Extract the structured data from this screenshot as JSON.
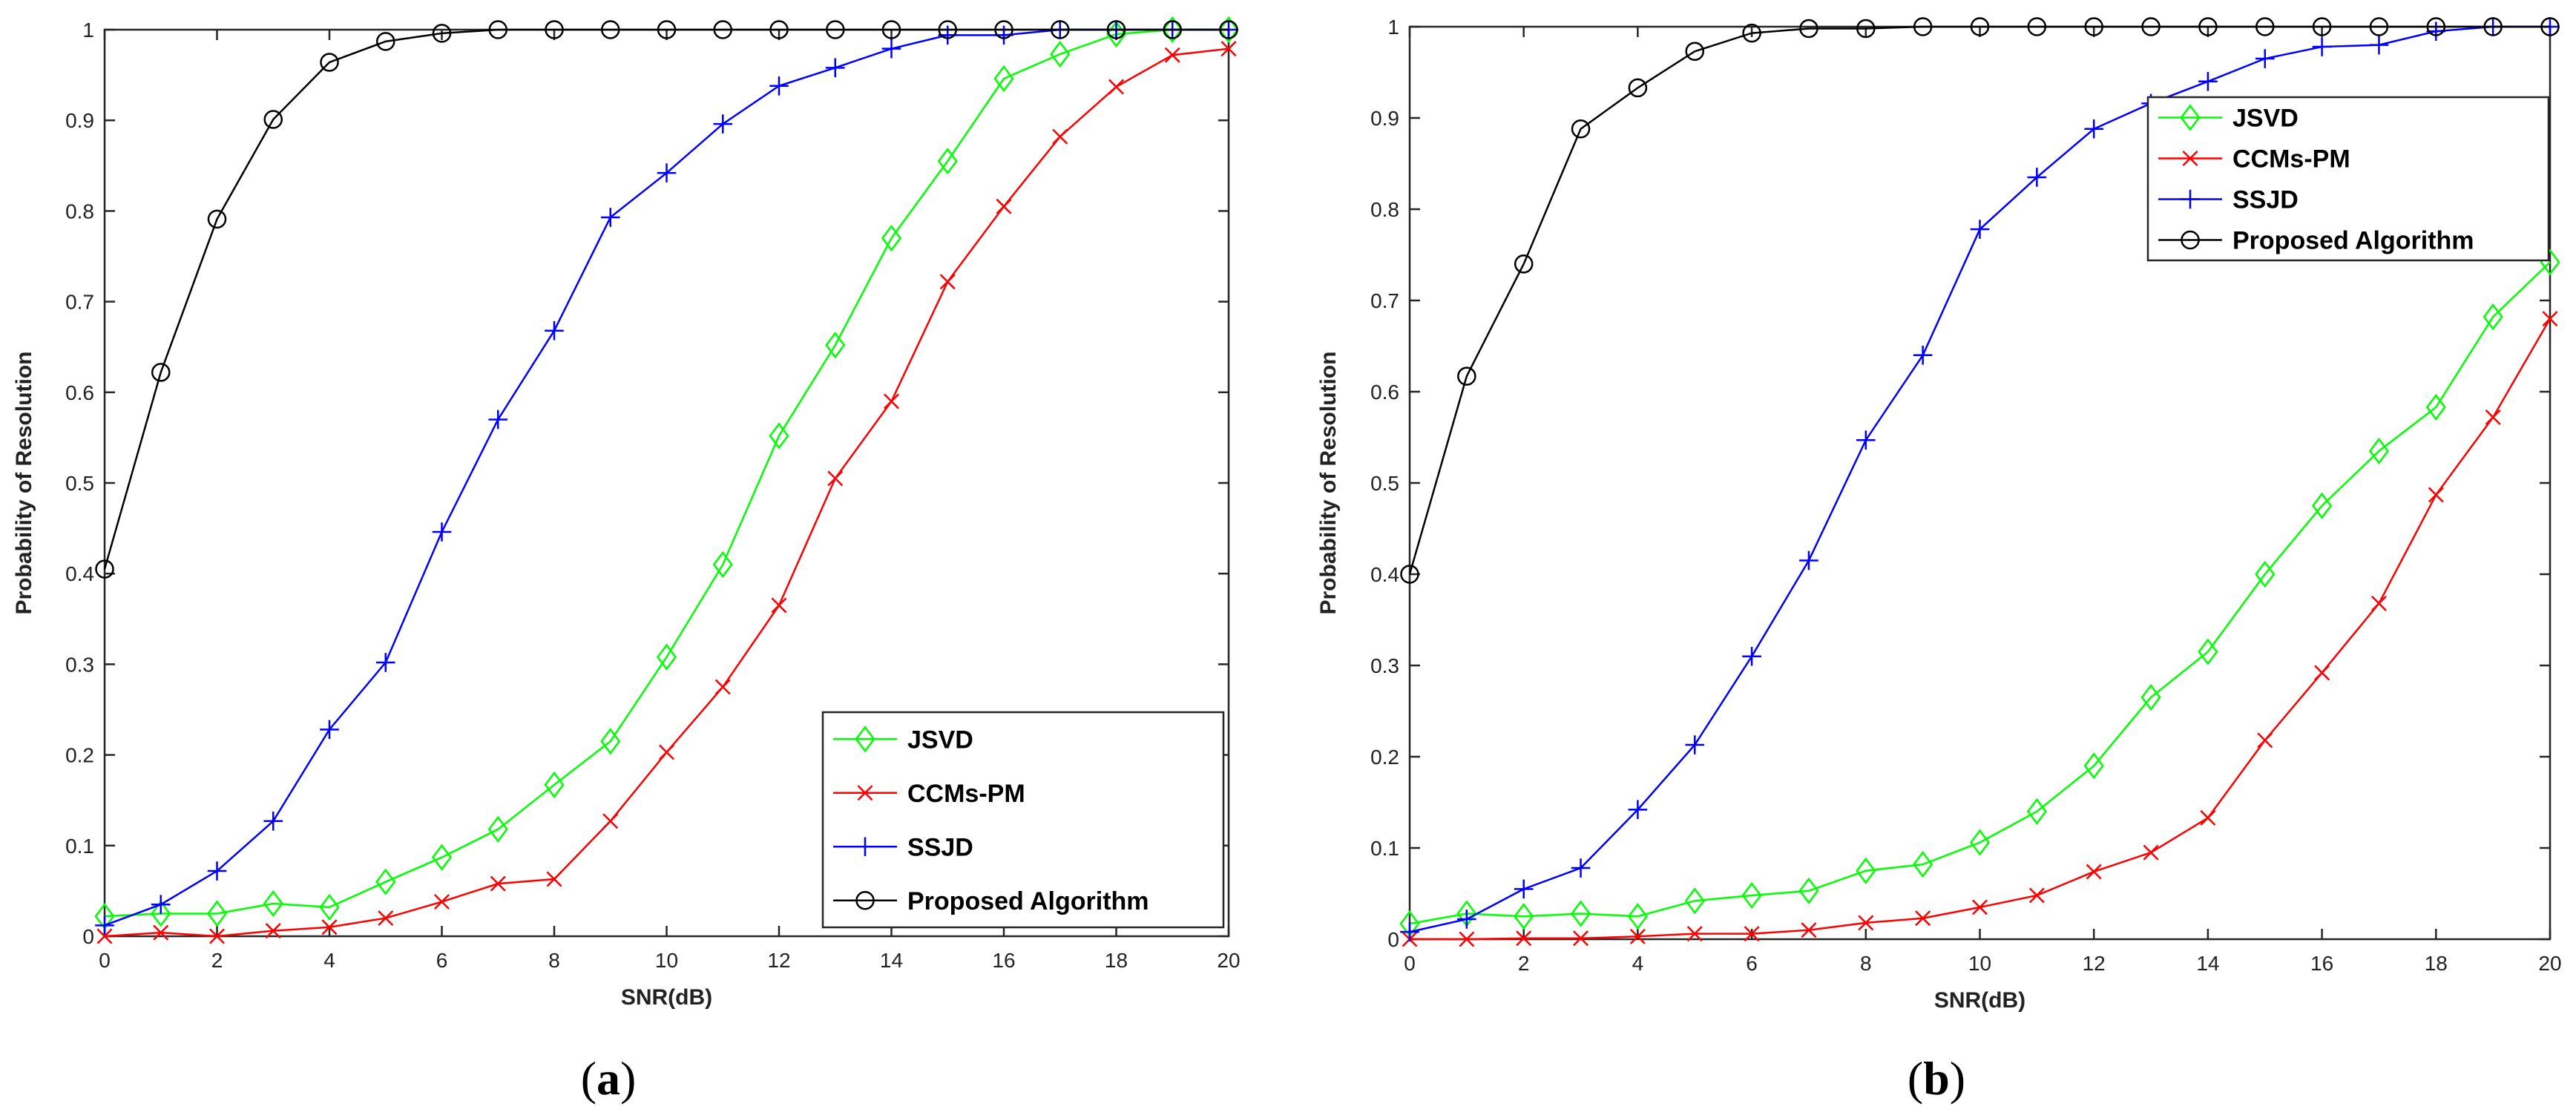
{
  "chart_data": [
    {
      "type": "line",
      "label_letter": "a",
      "xlabel": "SNR(dB)",
      "ylabel": "Probability of Resolution",
      "xlim": [
        0,
        20
      ],
      "ylim": [
        0,
        1
      ],
      "xticks": [
        0,
        2,
        4,
        6,
        8,
        10,
        12,
        14,
        16,
        18,
        20
      ],
      "yticks": [
        0,
        0.1,
        0.2,
        0.3,
        0.4,
        0.5,
        0.6,
        0.7,
        0.8,
        0.9,
        1
      ],
      "ytick_labels": [
        "0",
        "0.1",
        "0.2",
        "0.3",
        "0.4",
        "0.5",
        "0.6",
        "0.7",
        "0.8",
        "0.9",
        "1"
      ],
      "legend_position": "bottom-right",
      "x": [
        0,
        1,
        2,
        3,
        4,
        5,
        6,
        7,
        8,
        9,
        10,
        11,
        12,
        13,
        14,
        15,
        16,
        17,
        18,
        19,
        20
      ],
      "series": [
        {
          "name": "JSVD",
          "color": "#00ff00",
          "marker": "diamond",
          "values": [
            0.022,
            0.025,
            0.025,
            0.036,
            0.032,
            0.06,
            0.087,
            0.118,
            0.167,
            0.215,
            0.308,
            0.41,
            0.552,
            0.652,
            0.77,
            0.855,
            0.946,
            0.973,
            0.995,
            1.0,
            1.0
          ]
        },
        {
          "name": "CCMs-PM",
          "color": "#ff0000",
          "marker": "x",
          "values": [
            0.0,
            0.004,
            0.0,
            0.006,
            0.01,
            0.02,
            0.038,
            0.058,
            0.063,
            0.127,
            0.203,
            0.275,
            0.365,
            0.505,
            0.59,
            0.722,
            0.805,
            0.882,
            0.937,
            0.972,
            0.979
          ]
        },
        {
          "name": "SSJD",
          "color": "#0000ff",
          "marker": "plus",
          "values": [
            0.012,
            0.035,
            0.072,
            0.127,
            0.228,
            0.302,
            0.446,
            0.57,
            0.668,
            0.793,
            0.842,
            0.896,
            0.938,
            0.958,
            0.979,
            0.994,
            0.994,
            1.0,
            1.0,
            1.0,
            1.0
          ]
        },
        {
          "name": "Proposed Algorithm",
          "color": "#000000",
          "marker": "circle",
          "values": [
            0.405,
            0.622,
            0.791,
            0.901,
            0.964,
            0.987,
            0.996,
            1.0,
            1.0,
            1.0,
            1.0,
            1.0,
            1.0,
            1.0,
            1.0,
            1.0,
            1.0,
            1.0,
            1.0,
            1.0,
            1.0
          ]
        }
      ]
    },
    {
      "type": "line",
      "label_letter": "b",
      "xlabel": "SNR(dB)",
      "ylabel": "Probability of Resolution",
      "xlim": [
        0,
        20
      ],
      "ylim": [
        0,
        1
      ],
      "xticks": [
        0,
        2,
        4,
        6,
        8,
        10,
        12,
        14,
        16,
        18,
        20
      ],
      "yticks": [
        0,
        0.1,
        0.2,
        0.3,
        0.4,
        0.5,
        0.6,
        0.7,
        0.8,
        0.9,
        1
      ],
      "ytick_labels": [
        "0",
        "0.1",
        "0.2",
        "0.3",
        "0.4",
        "0.5",
        "0.6",
        "0.7",
        "0.8",
        "0.9",
        "1"
      ],
      "legend_position": "top-right",
      "x": [
        0,
        1,
        2,
        3,
        4,
        5,
        6,
        7,
        8,
        9,
        10,
        11,
        12,
        13,
        14,
        15,
        16,
        17,
        18,
        19,
        20
      ],
      "series": [
        {
          "name": "JSVD",
          "color": "#00ff00",
          "marker": "diamond",
          "values": [
            0.017,
            0.028,
            0.025,
            0.028,
            0.025,
            0.042,
            0.048,
            0.053,
            0.075,
            0.082,
            0.106,
            0.14,
            0.19,
            0.265,
            0.315,
            0.4,
            0.475,
            0.535,
            0.583,
            0.682,
            0.742
          ]
        },
        {
          "name": "CCMs-PM",
          "color": "#ff0000",
          "marker": "x",
          "values": [
            0.0,
            0.0,
            0.001,
            0.001,
            0.003,
            0.006,
            0.006,
            0.01,
            0.018,
            0.023,
            0.035,
            0.048,
            0.074,
            0.095,
            0.133,
            0.218,
            0.292,
            0.368,
            0.487,
            0.572,
            0.68
          ]
        },
        {
          "name": "SSJD",
          "color": "#0000ff",
          "marker": "plus",
          "values": [
            0.008,
            0.022,
            0.055,
            0.078,
            0.142,
            0.213,
            0.31,
            0.415,
            0.547,
            0.64,
            0.778,
            0.835,
            0.888,
            0.916,
            0.94,
            0.965,
            0.978,
            0.98,
            0.995,
            1.0,
            1.0
          ]
        },
        {
          "name": "Proposed Algorithm",
          "color": "#000000",
          "marker": "circle",
          "values": [
            0.4,
            0.617,
            0.74,
            0.888,
            0.933,
            0.973,
            0.993,
            0.998,
            0.998,
            1.0,
            1.0,
            1.0,
            1.0,
            1.0,
            1.0,
            1.0,
            1.0,
            1.0,
            1.0,
            1.0,
            1.0
          ]
        }
      ]
    }
  ]
}
